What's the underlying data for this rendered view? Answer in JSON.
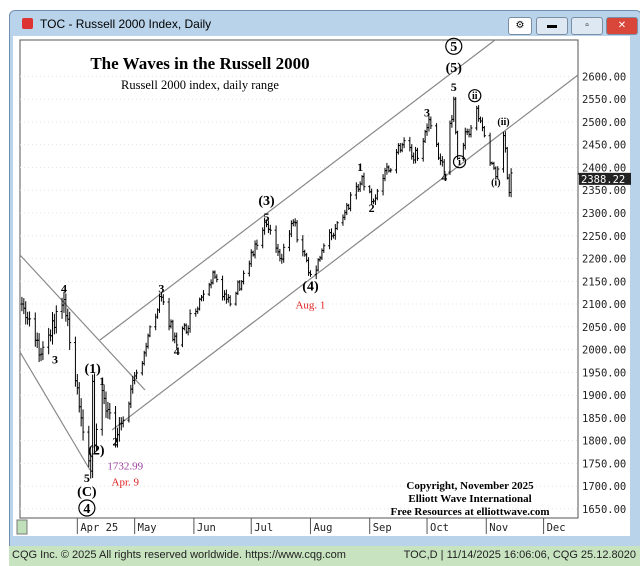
{
  "window": {
    "title": "TOC - Russell 2000 Index, Daily",
    "icons": [
      "plugin-icon",
      "minimize-icon",
      "maximize-icon",
      "close-icon"
    ]
  },
  "status": {
    "left": "CQG Inc. © 2025 All rights reserved worldwide. https://www.cqg.com",
    "right": "TOC,D | 11/14/2025 16:06:06, CQG 25.12.8020"
  },
  "chart_data": {
    "type": "ohlc-bar",
    "title": "The Waves in the Russell 2000",
    "subtitle": "Russell 2000 index, daily range",
    "ylim": [
      1630,
      2680
    ],
    "yticks": [
      1650,
      1700,
      1750,
      1800,
      1850,
      1900,
      1950,
      2000,
      2050,
      2100,
      2150,
      2200,
      2250,
      2300,
      2350,
      2400,
      2450,
      2500,
      2550,
      2600
    ],
    "ytick_format": "2 decimals",
    "xlim": [
      "2025-03-02",
      "2025-12-19"
    ],
    "xticks": [
      {
        "date": "2025-04-01",
        "label": "Apr 25"
      },
      {
        "date": "2025-05-01",
        "label": "May"
      },
      {
        "date": "2025-06-01",
        "label": "Jun"
      },
      {
        "date": "2025-07-01",
        "label": "Jul"
      },
      {
        "date": "2025-08-01",
        "label": "Aug"
      },
      {
        "date": "2025-09-01",
        "label": "Sep"
      },
      {
        "date": "2025-10-01",
        "label": "Oct"
      },
      {
        "date": "2025-11-01",
        "label": "Nov"
      },
      {
        "date": "2025-12-01",
        "label": "Dec"
      }
    ],
    "last_price": "2388.22",
    "price_path": [
      [
        "2025-03-03",
        2100
      ],
      [
        "2025-03-13",
        1990
      ],
      [
        "2025-03-25",
        2110
      ],
      [
        "2025-04-03",
        1850
      ],
      [
        "2025-04-08",
        1733
      ],
      [
        "2025-04-09",
        1930
      ],
      [
        "2025-04-10",
        1790
      ],
      [
        "2025-04-14",
        1910
      ],
      [
        "2025-04-21",
        1800
      ],
      [
        "2025-05-15",
        2115
      ],
      [
        "2025-05-23",
        2010
      ],
      [
        "2025-06-11",
        2170
      ],
      [
        "2025-06-20",
        2100
      ],
      [
        "2025-07-09",
        2275
      ],
      [
        "2025-07-16",
        2200
      ],
      [
        "2025-07-23",
        2280
      ],
      [
        "2025-08-01",
        2165
      ],
      [
        "2025-08-28",
        2380
      ],
      [
        "2025-09-02",
        2325
      ],
      [
        "2025-09-18",
        2450
      ],
      [
        "2025-09-26",
        2420
      ],
      [
        "2025-10-02",
        2505
      ],
      [
        "2025-10-10",
        2390
      ],
      [
        "2025-10-15",
        2550
      ],
      [
        "2025-10-17",
        2420
      ],
      [
        "2025-10-27",
        2530
      ],
      [
        "2025-11-06",
        2380
      ],
      [
        "2025-11-10",
        2470
      ],
      [
        "2025-11-13",
        2345
      ],
      [
        "2025-11-14",
        2388
      ]
    ],
    "wave_labels": [
      {
        "text": "4",
        "date": "2025-03-25",
        "price": 2125,
        "style": "plain"
      },
      {
        "text": "3",
        "date": "2025-03-13",
        "price": 1965,
        "style": "plain"
      },
      {
        "text": "(1)",
        "date": "2025-04-09",
        "price": 1948,
        "style": "paren"
      },
      {
        "text": "1",
        "date": "2025-04-14",
        "price": 1922,
        "style": "plain"
      },
      {
        "text": "(2)",
        "date": "2025-04-11",
        "price": 1770,
        "style": "paren"
      },
      {
        "text": "2",
        "date": "2025-04-21",
        "price": 1780,
        "style": "plain"
      },
      {
        "text": "5",
        "date": "2025-04-06",
        "price": 1705,
        "style": "plain"
      },
      {
        "text": "(C)",
        "date": "2025-04-06",
        "price": 1685,
        "style": "paren"
      },
      {
        "text": "4",
        "date": "2025-04-06",
        "price": 1650,
        "style": "circle"
      },
      {
        "text": "3",
        "date": "2025-05-15",
        "price": 2125,
        "style": "plain"
      },
      {
        "text": "4",
        "date": "2025-05-23",
        "price": 1988,
        "style": "plain"
      },
      {
        "text": "(3)",
        "date": "2025-07-09",
        "price": 2300,
        "style": "paren"
      },
      {
        "text": "5",
        "date": "2025-07-09",
        "price": 2282,
        "style": "plain"
      },
      {
        "text": "(4)",
        "date": "2025-08-01",
        "price": 2130,
        "style": "paren"
      },
      {
        "text": "1",
        "date": "2025-08-27",
        "price": 2392,
        "style": "plain"
      },
      {
        "text": "2",
        "date": "2025-09-02",
        "price": 2302,
        "style": "plain"
      },
      {
        "text": "3",
        "date": "2025-10-01",
        "price": 2512,
        "style": "plain"
      },
      {
        "text": "4",
        "date": "2025-10-10",
        "price": 2370,
        "style": "plain"
      },
      {
        "text": "5",
        "date": "2025-10-15",
        "price": 2568,
        "style": "plain"
      },
      {
        "text": "(5)",
        "date": "2025-10-15",
        "price": 2603,
        "style": "paren"
      },
      {
        "text": "5",
        "date": "2025-10-15",
        "price": 2640,
        "style": "circle"
      },
      {
        "text": "i",
        "date": "2025-10-18",
        "price": 2405,
        "style": "circle-small"
      },
      {
        "text": "ii",
        "date": "2025-10-26",
        "price": 2550,
        "style": "circle-small"
      },
      {
        "text": "(i)",
        "date": "2025-11-06",
        "price": 2360,
        "style": "paren-small"
      },
      {
        "text": "(ii)",
        "date": "2025-11-10",
        "price": 2493,
        "style": "paren-small"
      }
    ],
    "annotations": [
      {
        "text": "1732.99",
        "color": "#9b3fa0",
        "date": "2025-04-24",
        "price": 1732
      },
      {
        "text": "Apr. 9",
        "color": "#e02020",
        "date": "2025-04-24",
        "price": 1712
      },
      {
        "text": "Aug. 1",
        "color": "#e02020",
        "date": "2025-08-01",
        "price": 2090
      }
    ],
    "copyright": [
      "Copyright, November 2025",
      "Elliott Wave International",
      "Free Resources at elliottwave.com"
    ],
    "colors": {
      "bars": "#000000",
      "channel": "#808080",
      "plot_bg": "#ffffff",
      "last_price_bg": "#222222"
    }
  }
}
